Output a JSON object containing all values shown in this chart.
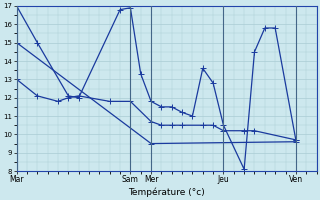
{
  "xlabel": "Température (°c)",
  "bg_color": "#cde8ee",
  "line_color": "#1a3a9e",
  "grid_color": "#aaccd4",
  "ylim": [
    8,
    17
  ],
  "yticks": [
    8,
    9,
    10,
    11,
    12,
    13,
    14,
    15,
    16,
    17
  ],
  "xtick_labels": [
    "Mar",
    "Sam",
    "Mer",
    "Jeu",
    "Ven"
  ],
  "xtick_positions": [
    0,
    5.5,
    6.5,
    10,
    13.5
  ],
  "xlim": [
    0,
    14.5
  ],
  "vlines": [
    0,
    5.5,
    6.5,
    10,
    13.5
  ],
  "series": {
    "line1_x": [
      0,
      1.0,
      2.5,
      3.0,
      5.0,
      5.5,
      6.0,
      6.5,
      7.0,
      7.5,
      8.0,
      8.5,
      9.0,
      9.5,
      10.0,
      11.0,
      11.5,
      12.0,
      12.5,
      13.5
    ],
    "line1_y": [
      17,
      15,
      12.1,
      12.0,
      16.8,
      16.9,
      13.3,
      11.8,
      11.5,
      11.5,
      11.2,
      11.0,
      13.6,
      12.8,
      10.5,
      8.1,
      14.5,
      15.8,
      15.8,
      9.7
    ],
    "line2_x": [
      0,
      1.0,
      2.0,
      2.5,
      3.0,
      4.5,
      5.5,
      6.5,
      7.0,
      7.5,
      8.0,
      9.0,
      9.5,
      10.0,
      11.0,
      11.5,
      13.5
    ],
    "line2_y": [
      13,
      12.1,
      11.8,
      12.0,
      12.1,
      11.8,
      11.8,
      10.7,
      10.5,
      10.5,
      10.5,
      10.5,
      10.5,
      10.2,
      10.2,
      10.2,
      9.7
    ],
    "line3_x": [
      0,
      6.5,
      13.5
    ],
    "line3_y": [
      15,
      9.5,
      9.6
    ]
  }
}
